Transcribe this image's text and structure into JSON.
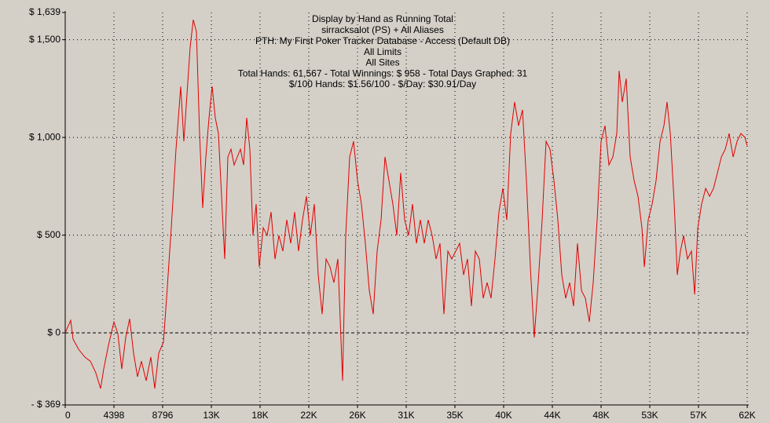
{
  "chart_data": {
    "type": "line",
    "title": "Display by Hand as Running Total",
    "subtitle_lines": [
      "sirracksalot (PS) + All Aliases",
      "PTH: My First Poker Tracker Database - Access (Default DB)",
      "All Limits",
      "All Sites",
      "Total Hands: 61,567 - Total Winnings: $ 958 - Total Days Graphed: 31",
      "$/100 Hands: $1.56/100 - $/Day: $30.91/Day"
    ],
    "xlim": [
      0,
      61567
    ],
    "ylim": [
      -369,
      1639
    ],
    "xticks": [
      0,
      4398,
      8796,
      {
        "value": 13194,
        "label": "13K"
      },
      {
        "value": 17592,
        "label": "18K"
      },
      {
        "value": 21990,
        "label": "22K"
      },
      {
        "value": 26388,
        "label": "26K"
      },
      {
        "value": 30786,
        "label": "31K"
      },
      {
        "value": 35184,
        "label": "35K"
      },
      {
        "value": 39582,
        "label": "40K"
      },
      {
        "value": 43980,
        "label": "44K"
      },
      {
        "value": 48378,
        "label": "48K"
      },
      {
        "value": 52776,
        "label": "53K"
      },
      {
        "value": 57174,
        "label": "57K"
      },
      {
        "value": 61572,
        "label": "62K"
      }
    ],
    "yticks": [
      {
        "value": -369,
        "label": "- $ 369"
      },
      {
        "value": 0,
        "label": "$ 0"
      },
      {
        "value": 500,
        "label": "$ 500"
      },
      {
        "value": 1000,
        "label": "$ 1,000"
      },
      {
        "value": 1500,
        "label": "$ 1,500"
      },
      {
        "value": 1639,
        "label": "$ 1,639"
      }
    ],
    "grid": true,
    "series": [
      {
        "color": "#e00000",
        "x": [
          0,
          497,
          709,
          1206,
          1774,
          2270,
          2767,
          3192,
          3476,
          3902,
          4398,
          4753,
          5108,
          5462,
          5817,
          6172,
          6526,
          6881,
          7307,
          7732,
          8087,
          8442,
          8868,
          9151,
          9577,
          10003,
          10428,
          10712,
          10996,
          11279,
          11563,
          11847,
          12131,
          12415,
          12698,
          12982,
          13266,
          13550,
          13833,
          14117,
          14401,
          14685,
          14968,
          15252,
          15536,
          15820,
          16103,
          16387,
          16671,
          16955,
          17238,
          17522,
          17877,
          18232,
          18586,
          18941,
          19296,
          19650,
          20005,
          20360,
          20714,
          21069,
          21424,
          21779,
          22133,
          22488,
          22843,
          23197,
          23552,
          23907,
          24261,
          24616,
          25042,
          25326,
          25680,
          26035,
          26390,
          26744,
          27099,
          27454,
          27808,
          28163,
          28518,
          28873,
          29227,
          29582,
          29937,
          30291,
          30646,
          31001,
          31355,
          31710,
          32065,
          32420,
          32774,
          33129,
          33484,
          33838,
          34193,
          34548,
          34902,
          35257,
          35612,
          35967,
          36321,
          36676,
          37031,
          37385,
          37740,
          38095,
          38449,
          38804,
          39159,
          39514,
          39868,
          40223,
          40578,
          40932,
          41287,
          41642,
          41996,
          42351,
          42706,
          43061,
          43415,
          43770,
          44125,
          44479,
          44834,
          45189,
          45543,
          45898,
          46253,
          46608,
          46962,
          47317,
          47672,
          48026,
          48381,
          48736,
          49090,
          49445,
          49800,
          50013,
          50296,
          50651,
          51006,
          51361,
          51715,
          52070,
          52283,
          52637,
          52992,
          53347,
          53702,
          54056,
          54340,
          54624,
          54979,
          55262,
          55546,
          55830,
          56184,
          56539,
          56823,
          57107,
          57461,
          57816,
          58171,
          58526,
          58880,
          59235,
          59590,
          59944,
          60299,
          60654,
          61008,
          61363,
          61567
        ],
        "values": [
          0,
          64,
          -32,
          -84,
          -124,
          -145,
          -205,
          -285,
          -185,
          -64,
          56,
          -4,
          -185,
          -24,
          72,
          -104,
          -225,
          -145,
          -245,
          -124,
          -285,
          -104,
          -48,
          177,
          538,
          940,
          1261,
          980,
          1221,
          1462,
          1602,
          1542,
          1020,
          639,
          900,
          1100,
          1261,
          1100,
          1020,
          699,
          378,
          900,
          940,
          859,
          900,
          940,
          859,
          1100,
          940,
          498,
          659,
          337,
          538,
          498,
          618,
          377,
          498,
          418,
          578,
          458,
          618,
          418,
          578,
          699,
          498,
          659,
          297,
          96,
          378,
          337,
          257,
          378,
          -245,
          498,
          900,
          980,
          779,
          659,
          458,
          217,
          96,
          418,
          578,
          900,
          779,
          659,
          498,
          819,
          578,
          498,
          659,
          458,
          578,
          458,
          578,
          498,
          378,
          458,
          96,
          418,
          378,
          418,
          458,
          297,
          378,
          137,
          418,
          378,
          177,
          257,
          177,
          378,
          618,
          739,
          578,
          1020,
          1181,
          1060,
          1141,
          779,
          337,
          -24,
          257,
          578,
          980,
          940,
          779,
          578,
          297,
          177,
          257,
          137,
          458,
          217,
          177,
          56,
          257,
          578,
          980,
          1060,
          859,
          900,
          1020,
          1341,
          1181,
          1301,
          900,
          779,
          699,
          538,
          337,
          578,
          659,
          779,
          980,
          1060,
          1181,
          1020,
          659,
          297,
          418,
          498,
          378,
          418,
          197,
          538,
          659,
          739,
          699,
          739,
          819,
          900,
          940,
          1020,
          900,
          980,
          1020,
          1000,
          958
        ]
      }
    ]
  }
}
